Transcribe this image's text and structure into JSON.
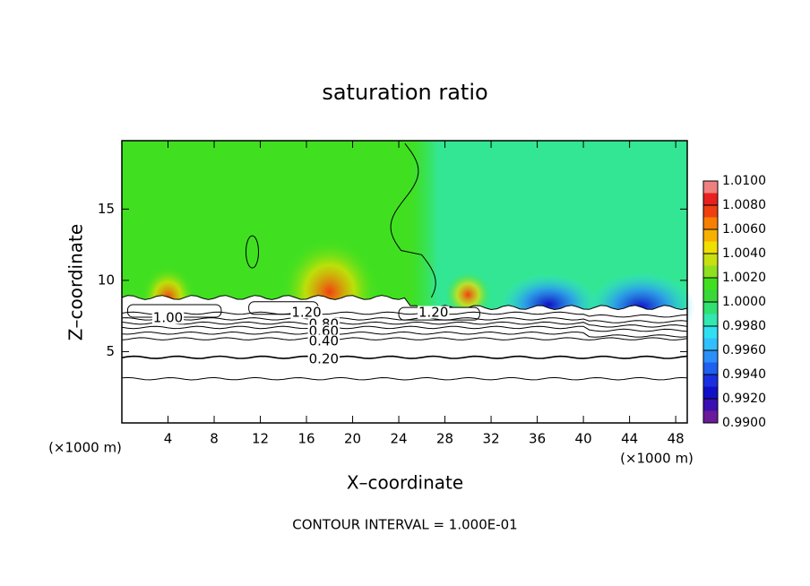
{
  "chart_data": {
    "type": "contour",
    "title": "saturation ratio",
    "xlabel": "X–coordinate",
    "ylabel": "Z–coordinate",
    "x_unit_left": "(×1000 m)",
    "x_unit_right": "(×1000 m)",
    "footer": "CONTOUR INTERVAL = 1.000E-01",
    "xlim": [
      0,
      49
    ],
    "ylim": [
      0,
      19.8
    ],
    "xticks": [
      4,
      8,
      12,
      16,
      20,
      24,
      28,
      32,
      36,
      40,
      44,
      48
    ],
    "yticks": [
      5,
      10,
      15
    ],
    "contour_labels": [
      "1.00",
      "1.20",
      "0.80",
      "0.60",
      "0.40",
      "0.20",
      "1.20"
    ],
    "colorbar": {
      "lim": [
        0.99,
        1.01
      ],
      "ticks": [
        {
          "value": 0.99,
          "label": "0.9900"
        },
        {
          "value": 0.992,
          "label": "0.9920"
        },
        {
          "value": 0.994,
          "label": "0.9940"
        },
        {
          "value": 0.996,
          "label": "0.9960"
        },
        {
          "value": 0.998,
          "label": "0.9980"
        },
        {
          "value": 1.0,
          "label": "1.0000"
        },
        {
          "value": 1.002,
          "label": "1.0020"
        },
        {
          "value": 1.004,
          "label": "1.0040"
        },
        {
          "value": 1.006,
          "label": "1.0060"
        },
        {
          "value": 1.008,
          "label": "1.0080"
        },
        {
          "value": 1.01,
          "label": "1.0100"
        }
      ],
      "colors": [
        "#6a1b9a",
        "#3a10b0",
        "#1010c8",
        "#1a30e0",
        "#1e60f0",
        "#2a90f8",
        "#30c0ff",
        "#30e0f0",
        "#30e8b0",
        "#30e070",
        "#38d838",
        "#40e020",
        "#90e020",
        "#c8e010",
        "#f0e000",
        "#f8b000",
        "#f88000",
        "#f04010",
        "#e82020",
        "#f08080"
      ]
    }
  }
}
